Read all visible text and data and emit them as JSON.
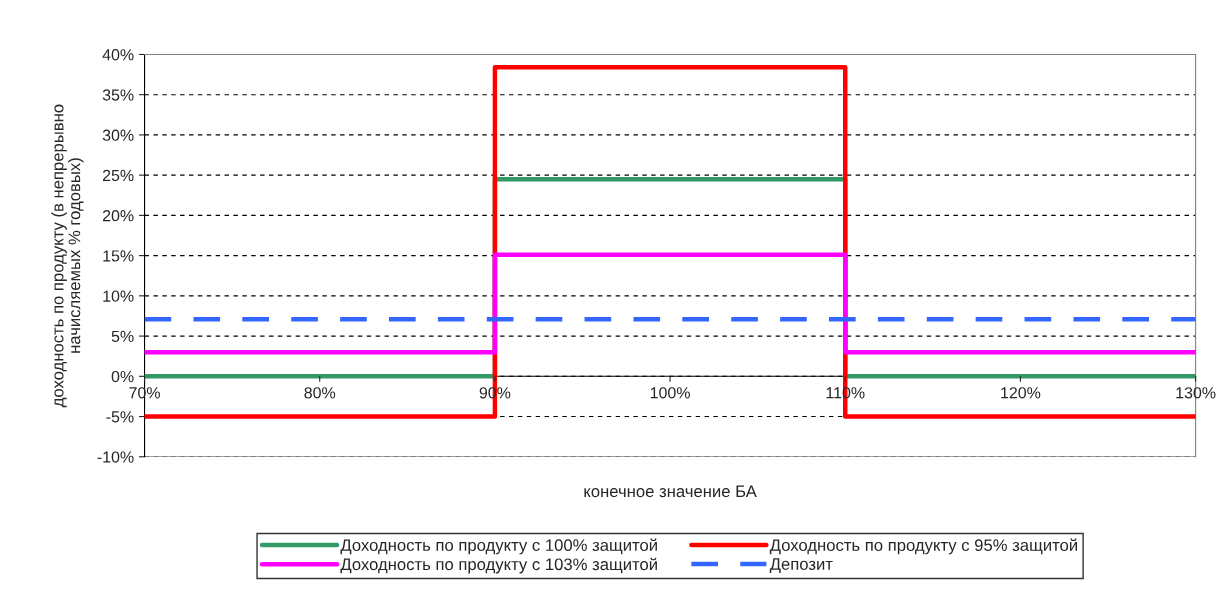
{
  "chart_data": {
    "type": "line",
    "xlabel": "конечное значение БА",
    "ylabel": "доходность по продукту (в непрерывно\nначисляемых % годовых)",
    "xlim": [
      70,
      130
    ],
    "ylim": [
      -10,
      40
    ],
    "xticks": [
      {
        "value": 70,
        "label": "70%"
      },
      {
        "value": 80,
        "label": "80%"
      },
      {
        "value": 90,
        "label": "90%"
      },
      {
        "value": 100,
        "label": "100%"
      },
      {
        "value": 110,
        "label": "110%"
      },
      {
        "value": 120,
        "label": "120%"
      },
      {
        "value": 130,
        "label": "130%"
      }
    ],
    "yticks": [
      {
        "value": -10,
        "label": "-10%"
      },
      {
        "value": -5,
        "label": "-5%"
      },
      {
        "value": 0,
        "label": "0%"
      },
      {
        "value": 5,
        "label": "5%"
      },
      {
        "value": 10,
        "label": "10%"
      },
      {
        "value": 15,
        "label": "15%"
      },
      {
        "value": 20,
        "label": "20%"
      },
      {
        "value": 25,
        "label": "25%"
      },
      {
        "value": 30,
        "label": "30%"
      },
      {
        "value": 35,
        "label": "35%"
      },
      {
        "value": 40,
        "label": "40%"
      }
    ],
    "grid": "y",
    "legend": "bottom",
    "series": [
      {
        "name": "Доходность по продукту с 100% защитой",
        "color": "#339966",
        "x": [
          70,
          90,
          90,
          110,
          110,
          130
        ],
        "values": [
          0,
          0,
          24.5,
          24.5,
          0,
          0
        ]
      },
      {
        "name": "Доходность по продукту с 95% защитой",
        "color": "#ff0000",
        "x": [
          70,
          90,
          90,
          110,
          110,
          130
        ],
        "values": [
          -5,
          -5,
          38.4,
          38.4,
          -5,
          -5
        ]
      },
      {
        "name": "Доходность по продукту с 103% защитой",
        "color": "#ff00ff",
        "x": [
          70,
          90,
          90,
          110,
          110,
          130
        ],
        "values": [
          3,
          3,
          15.1,
          15.1,
          3,
          3
        ]
      },
      {
        "name": "Депозит",
        "color": "#3366ff",
        "line_style": "dashed",
        "x": [
          70,
          130
        ],
        "values": [
          7.1,
          7.1
        ]
      }
    ]
  }
}
